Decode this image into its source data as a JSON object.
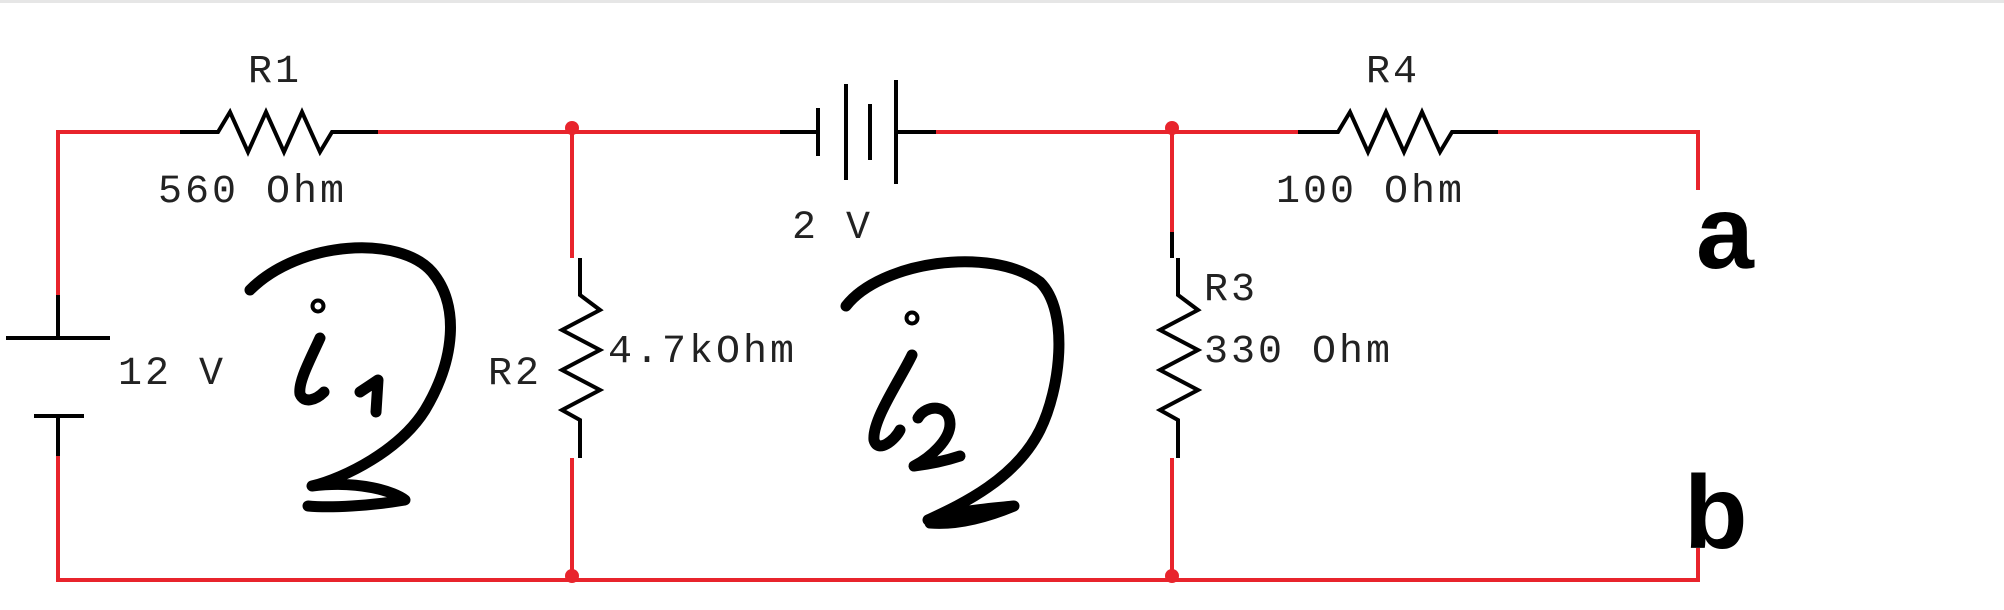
{
  "colors": {
    "wire": "#e8242c",
    "component": "#000000",
    "background": "#ffffff"
  },
  "components": {
    "r1": {
      "name": "R1",
      "value": "560 Ohm"
    },
    "r2": {
      "name": "R2",
      "value": "4.7kOhm"
    },
    "r3": {
      "name": "R3",
      "value": "330 Ohm"
    },
    "r4": {
      "name": "R4",
      "value": "100 Ohm"
    },
    "v1": {
      "value": "12 V"
    },
    "v2": {
      "value": "2 V"
    }
  },
  "terminals": {
    "a": "a",
    "b": "b"
  },
  "loops": {
    "i1": "i1",
    "i2": "i2"
  }
}
